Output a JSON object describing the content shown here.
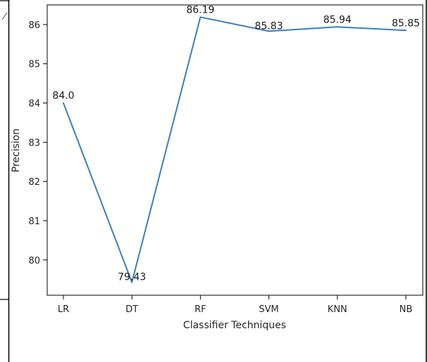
{
  "chart_data": {
    "type": "line",
    "title": "",
    "xlabel": "Classifier Techniques",
    "ylabel": "Precision",
    "categories": [
      "LR",
      "DT",
      "RF",
      "SVM",
      "KNN",
      "NB"
    ],
    "series": [
      {
        "values": [
          84.0,
          79.43,
          86.19,
          85.83,
          85.94,
          85.85
        ],
        "color": "#3a7fbd"
      }
    ],
    "data_labels": [
      "84.0",
      "79.43",
      "86.19",
      "85.83",
      "85.94",
      "85.85"
    ],
    "yticks": [
      80,
      81,
      82,
      83,
      84,
      85,
      86
    ],
    "ylim": [
      79.1,
      86.5
    ],
    "grid": false,
    "legend": "none"
  }
}
